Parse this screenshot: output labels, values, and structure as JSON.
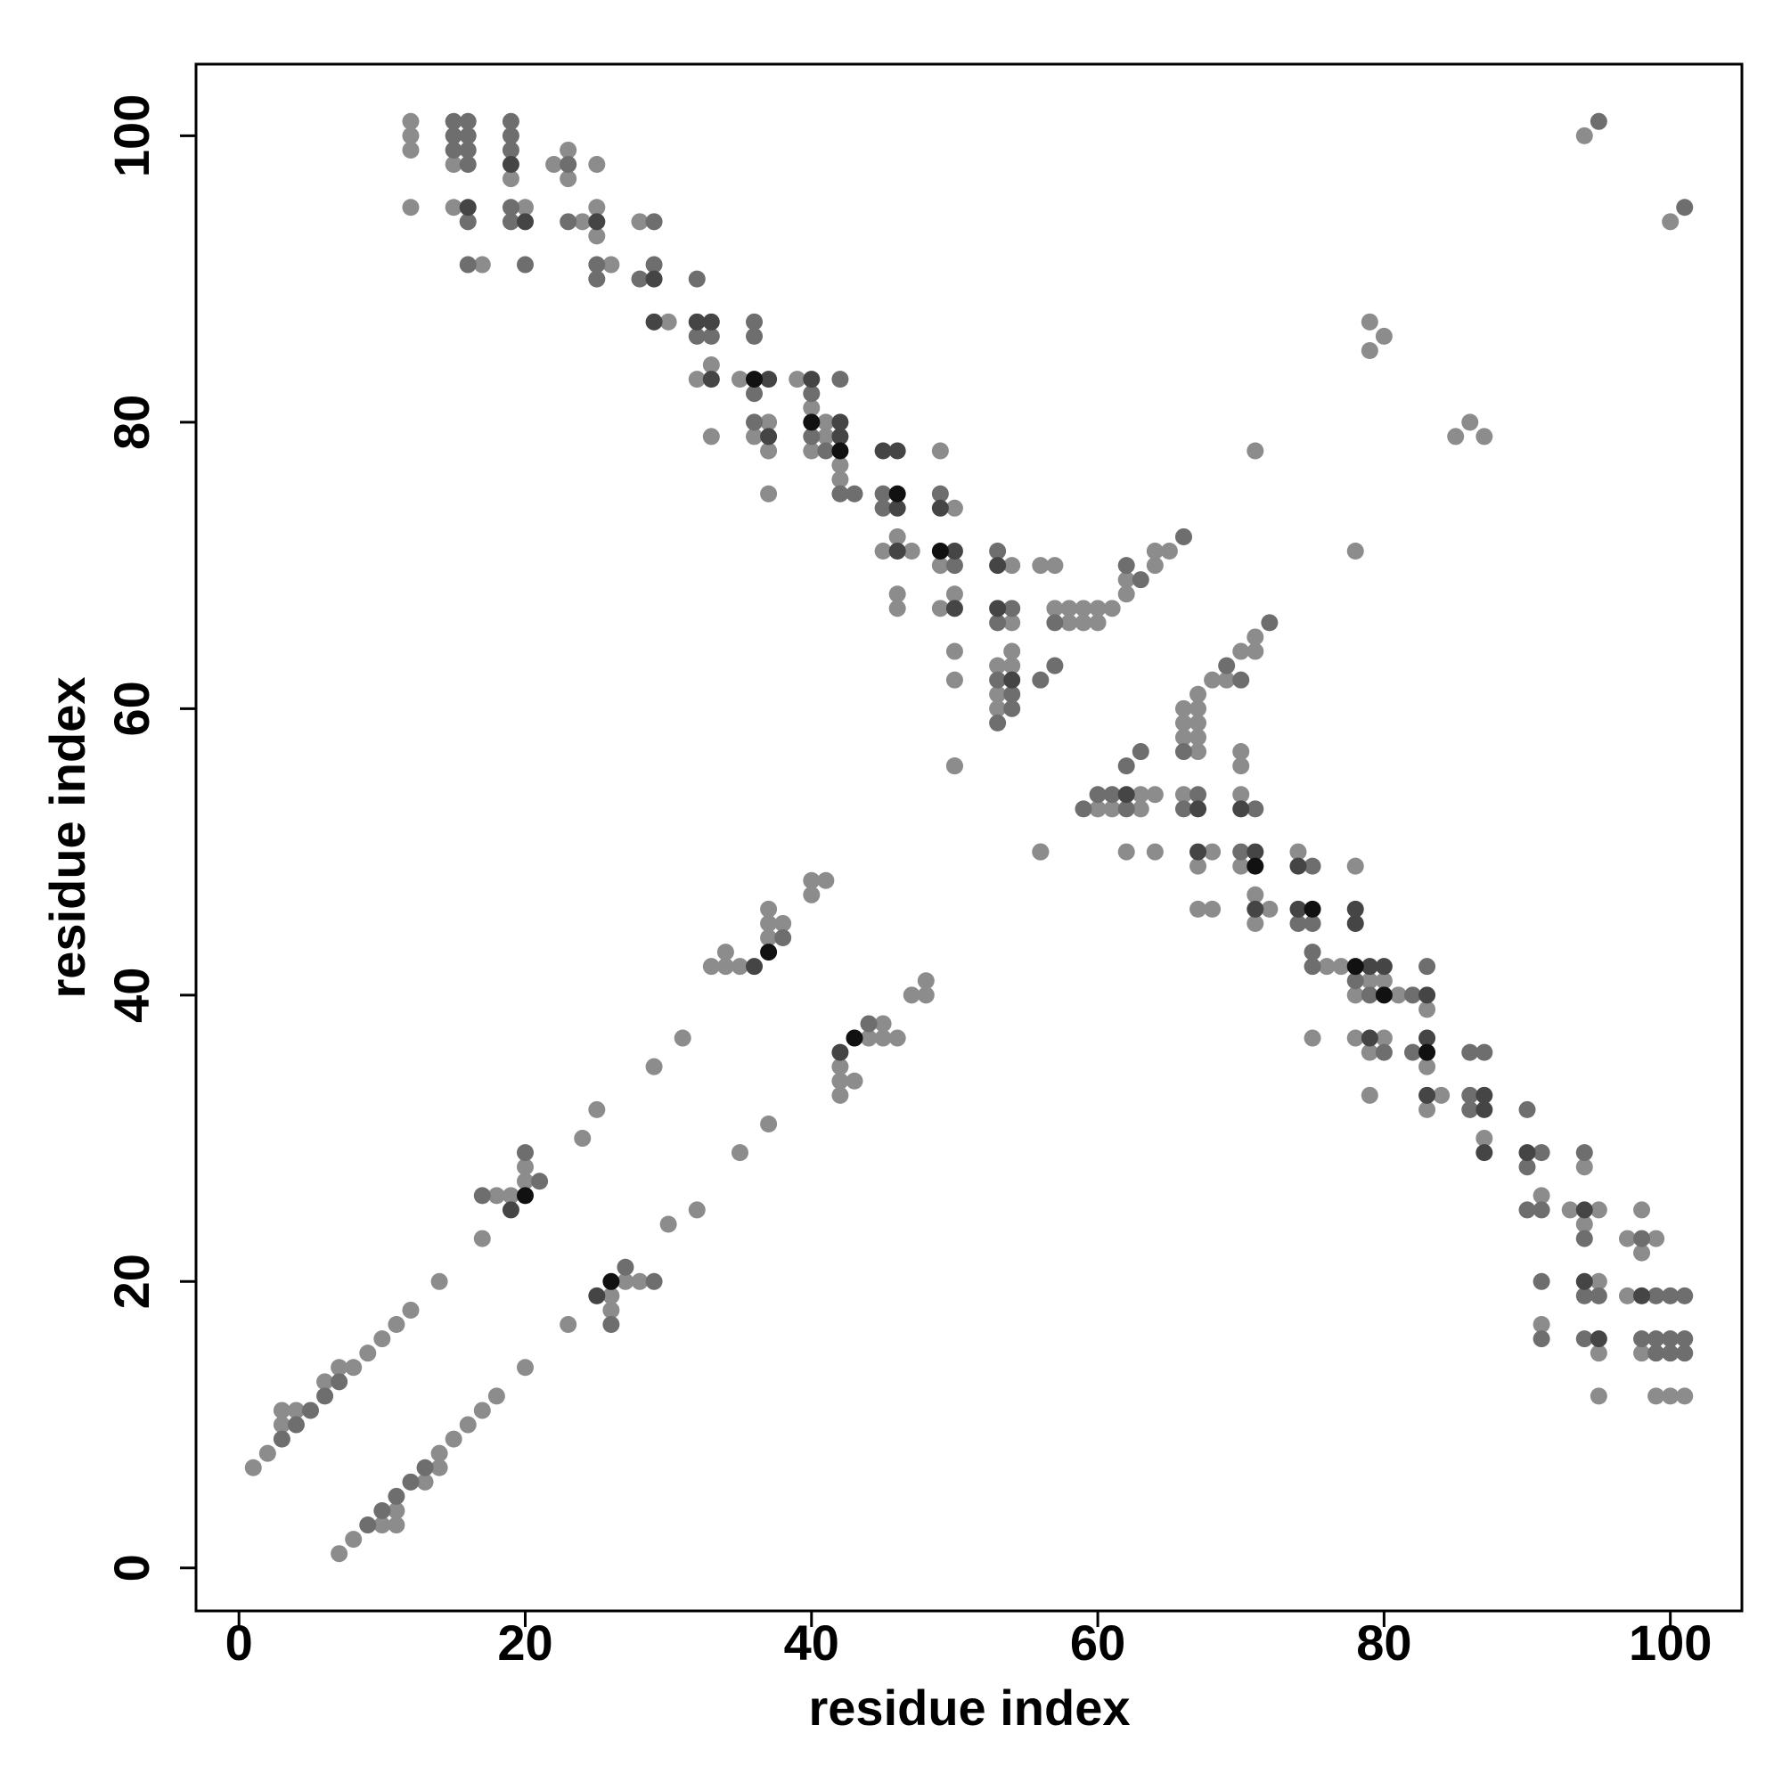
{
  "chart_data": {
    "type": "scatter",
    "xlabel": "residue index",
    "ylabel": "residue index",
    "xlim": [
      -3,
      105
    ],
    "ylim": [
      -3,
      105
    ],
    "xticks": [
      0,
      20,
      40,
      60,
      80,
      100
    ],
    "yticks": [
      0,
      20,
      40,
      60,
      80,
      100
    ],
    "series": [
      {
        "color": "#8c8c8c",
        "x": [
          12,
          12,
          12,
          12,
          15,
          15,
          17,
          19,
          20,
          22,
          23,
          23,
          24,
          25,
          25,
          25,
          26,
          28,
          30,
          32,
          33,
          33,
          35,
          36,
          37,
          37,
          37,
          39,
          40,
          40,
          41,
          41,
          42,
          42,
          45,
          46,
          46,
          46,
          47,
          49,
          49,
          49,
          50,
          50,
          50,
          50,
          50,
          53,
          53,
          53,
          54,
          54,
          54,
          54,
          56,
          56,
          57,
          57,
          58,
          58,
          59,
          59,
          60,
          60,
          61,
          62,
          62,
          64,
          64,
          65,
          71,
          79,
          79,
          80,
          94,
          1,
          2,
          3,
          3,
          4,
          6,
          7,
          8,
          9,
          10,
          11,
          12,
          14,
          17,
          18,
          19,
          20,
          20,
          24,
          25,
          29,
          31,
          33,
          34,
          34,
          35,
          37,
          37,
          37,
          38,
          40,
          40,
          41,
          101,
          100,
          99,
          95,
          98,
          95,
          91,
          97,
          95,
          98,
          99,
          97,
          94,
          98,
          95,
          93,
          91,
          94,
          87,
          83,
          84,
          79,
          83,
          79,
          80,
          78,
          75,
          83,
          81,
          78,
          80,
          79,
          77,
          76,
          71,
          72,
          68,
          67,
          71,
          78,
          70,
          67,
          74,
          68,
          64,
          62,
          56,
          63,
          61,
          60,
          70,
          66,
          64,
          63,
          70,
          50,
          70,
          67,
          67,
          66,
          67,
          66,
          67,
          66,
          67,
          69,
          68,
          71,
          70,
          71,
          78,
          87,
          85,
          86,
          100,
          7,
          8,
          10,
          11,
          11,
          13,
          14,
          14,
          15,
          16,
          17,
          18,
          20,
          23,
          26,
          26,
          27,
          28,
          30,
          32,
          35,
          37,
          42,
          42,
          43,
          42,
          44,
          45,
          46,
          45,
          47,
          48,
          48
        ],
        "y": [
          101,
          100,
          99,
          95,
          98,
          95,
          91,
          97,
          95,
          98,
          99,
          97,
          94,
          98,
          95,
          93,
          91,
          94,
          87,
          83,
          84,
          79,
          83,
          79,
          80,
          78,
          75,
          83,
          81,
          78,
          80,
          79,
          77,
          76,
          71,
          72,
          68,
          67,
          71,
          78,
          70,
          67,
          74,
          68,
          64,
          62,
          56,
          63,
          61,
          60,
          70,
          66,
          64,
          63,
          70,
          50,
          70,
          67,
          67,
          66,
          67,
          66,
          67,
          66,
          67,
          69,
          68,
          71,
          70,
          71,
          78,
          87,
          85,
          86,
          100,
          7,
          8,
          10,
          11,
          11,
          13,
          14,
          14,
          15,
          16,
          17,
          18,
          20,
          23,
          26,
          26,
          27,
          28,
          30,
          32,
          35,
          37,
          42,
          42,
          43,
          42,
          44,
          45,
          46,
          45,
          47,
          48,
          48,
          12,
          12,
          12,
          12,
          15,
          15,
          17,
          19,
          20,
          22,
          23,
          23,
          24,
          25,
          25,
          25,
          26,
          28,
          30,
          32,
          33,
          33,
          35,
          36,
          37,
          37,
          37,
          39,
          40,
          40,
          41,
          41,
          42,
          42,
          45,
          46,
          46,
          46,
          47,
          49,
          49,
          49,
          50,
          50,
          50,
          50,
          50,
          53,
          53,
          53,
          54,
          54,
          54,
          54,
          56,
          56,
          57,
          57,
          58,
          58,
          59,
          59,
          60,
          60,
          61,
          62,
          62,
          64,
          64,
          65,
          71,
          79,
          79,
          80,
          94,
          1,
          2,
          3,
          3,
          4,
          6,
          7,
          8,
          9,
          10,
          11,
          12,
          14,
          17,
          18,
          19,
          20,
          20,
          24,
          25,
          29,
          31,
          33,
          34,
          34,
          35,
          37,
          37,
          37,
          38,
          40,
          40,
          41
        ]
      },
      {
        "color": "#6e6e6e",
        "x": [
          15,
          15,
          15,
          16,
          16,
          16,
          16,
          16,
          16,
          19,
          19,
          19,
          19,
          19,
          20,
          23,
          23,
          25,
          25,
          28,
          29,
          29,
          32,
          32,
          33,
          36,
          36,
          36,
          36,
          40,
          40,
          41,
          42,
          42,
          43,
          45,
          45,
          49,
          50,
          53,
          53,
          53,
          53,
          54,
          54,
          54,
          56,
          57,
          57,
          62,
          63,
          66,
          95,
          3,
          4,
          5,
          6,
          7,
          17,
          20,
          21,
          38,
          101,
          100,
          99,
          101,
          100,
          99,
          98,
          94,
          91,
          101,
          100,
          99,
          95,
          94,
          91,
          98,
          94,
          91,
          90,
          90,
          94,
          91,
          90,
          86,
          86,
          87,
          86,
          82,
          80,
          82,
          79,
          78,
          83,
          75,
          75,
          75,
          74,
          75,
          70,
          71,
          66,
          62,
          59,
          67,
          61,
          60,
          62,
          66,
          63,
          70,
          69,
          72,
          101,
          9,
          10,
          11,
          12,
          13,
          26,
          29,
          27,
          44
        ],
        "y": [
          101,
          100,
          99,
          101,
          100,
          99,
          98,
          94,
          91,
          101,
          100,
          99,
          95,
          94,
          91,
          98,
          94,
          91,
          90,
          90,
          94,
          91,
          90,
          86,
          86,
          87,
          86,
          82,
          80,
          82,
          79,
          78,
          83,
          75,
          75,
          75,
          74,
          75,
          70,
          71,
          66,
          62,
          59,
          67,
          61,
          60,
          62,
          66,
          63,
          70,
          69,
          72,
          101,
          9,
          10,
          11,
          12,
          13,
          26,
          29,
          27,
          44,
          15,
          15,
          15,
          16,
          16,
          16,
          16,
          16,
          16,
          19,
          19,
          19,
          19,
          19,
          20,
          23,
          23,
          25,
          25,
          28,
          29,
          29,
          32,
          32,
          33,
          36,
          36,
          36,
          36,
          40,
          40,
          41,
          42,
          42,
          43,
          45,
          45,
          49,
          50,
          53,
          53,
          53,
          53,
          54,
          54,
          54,
          56,
          57,
          57,
          62,
          63,
          66,
          95,
          3,
          4,
          5,
          6,
          7,
          17,
          20,
          21,
          38
        ]
      },
      {
        "color": "#454545",
        "x": [
          16,
          19,
          20,
          25,
          29,
          29,
          32,
          33,
          33,
          37,
          37,
          40,
          42,
          42,
          45,
          46,
          46,
          46,
          49,
          50,
          50,
          53,
          53,
          54,
          19,
          36,
          95,
          98,
          94,
          94,
          90,
          87,
          87,
          87,
          83,
          83,
          79,
          83,
          80,
          79,
          78,
          78,
          74,
          71,
          74,
          71,
          67,
          70,
          67,
          62,
          25,
          42
        ],
        "y": [
          95,
          98,
          94,
          94,
          90,
          87,
          87,
          87,
          83,
          83,
          79,
          83,
          80,
          79,
          78,
          78,
          74,
          71,
          74,
          71,
          67,
          70,
          67,
          62,
          25,
          42,
          16,
          19,
          20,
          25,
          29,
          29,
          32,
          33,
          33,
          37,
          37,
          40,
          42,
          42,
          45,
          46,
          46,
          46,
          49,
          50,
          50,
          53,
          53,
          54,
          19,
          36
        ]
      },
      {
        "color": "#111111",
        "x": [
          36,
          40,
          42,
          46,
          49,
          20,
          37,
          83,
          80,
          78,
          75,
          71,
          26,
          43
        ],
        "y": [
          83,
          80,
          78,
          75,
          71,
          26,
          43,
          36,
          40,
          42,
          46,
          49,
          20,
          37
        ]
      }
    ]
  }
}
